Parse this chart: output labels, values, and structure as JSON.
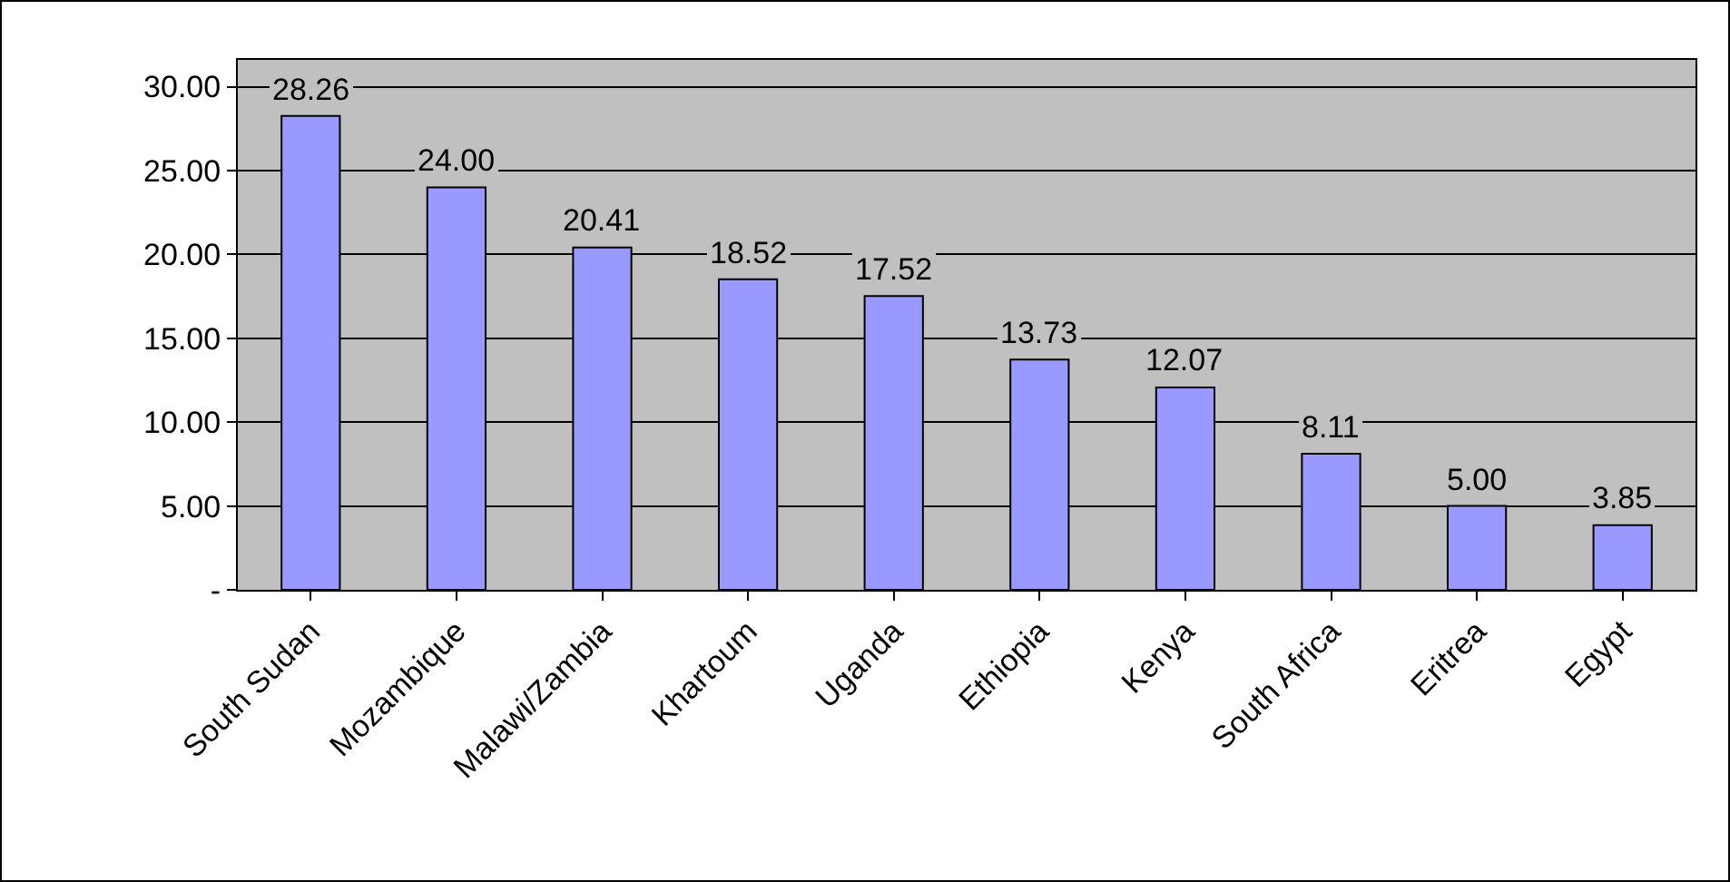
{
  "chart_data": {
    "type": "bar",
    "categories": [
      "South Sudan",
      "Mozambique",
      "Malawi/Zambia",
      "Khartoum",
      "Uganda",
      "Ethiopia",
      "Kenya",
      "South Africa",
      "Eritrea",
      "Egypt"
    ],
    "values": [
      28.26,
      24.0,
      20.41,
      18.52,
      17.52,
      13.73,
      12.07,
      8.11,
      5.0,
      3.85
    ],
    "value_labels": [
      "28.26",
      "24.00",
      "20.41",
      "18.52",
      "17.52",
      "13.73",
      "12.07",
      "8.11",
      "5.00",
      "3.85"
    ],
    "color": "#9999ff",
    "ylim": [
      0,
      31.6
    ],
    "yticks": [
      {
        "value": 0,
        "label": "-"
      },
      {
        "value": 5,
        "label": "5.00"
      },
      {
        "value": 10,
        "label": "10.00"
      },
      {
        "value": 15,
        "label": "15.00"
      },
      {
        "value": 20,
        "label": "20.00"
      },
      {
        "value": 25,
        "label": "25.00"
      },
      {
        "value": 30,
        "label": "30.00"
      }
    ],
    "grid": "y"
  }
}
